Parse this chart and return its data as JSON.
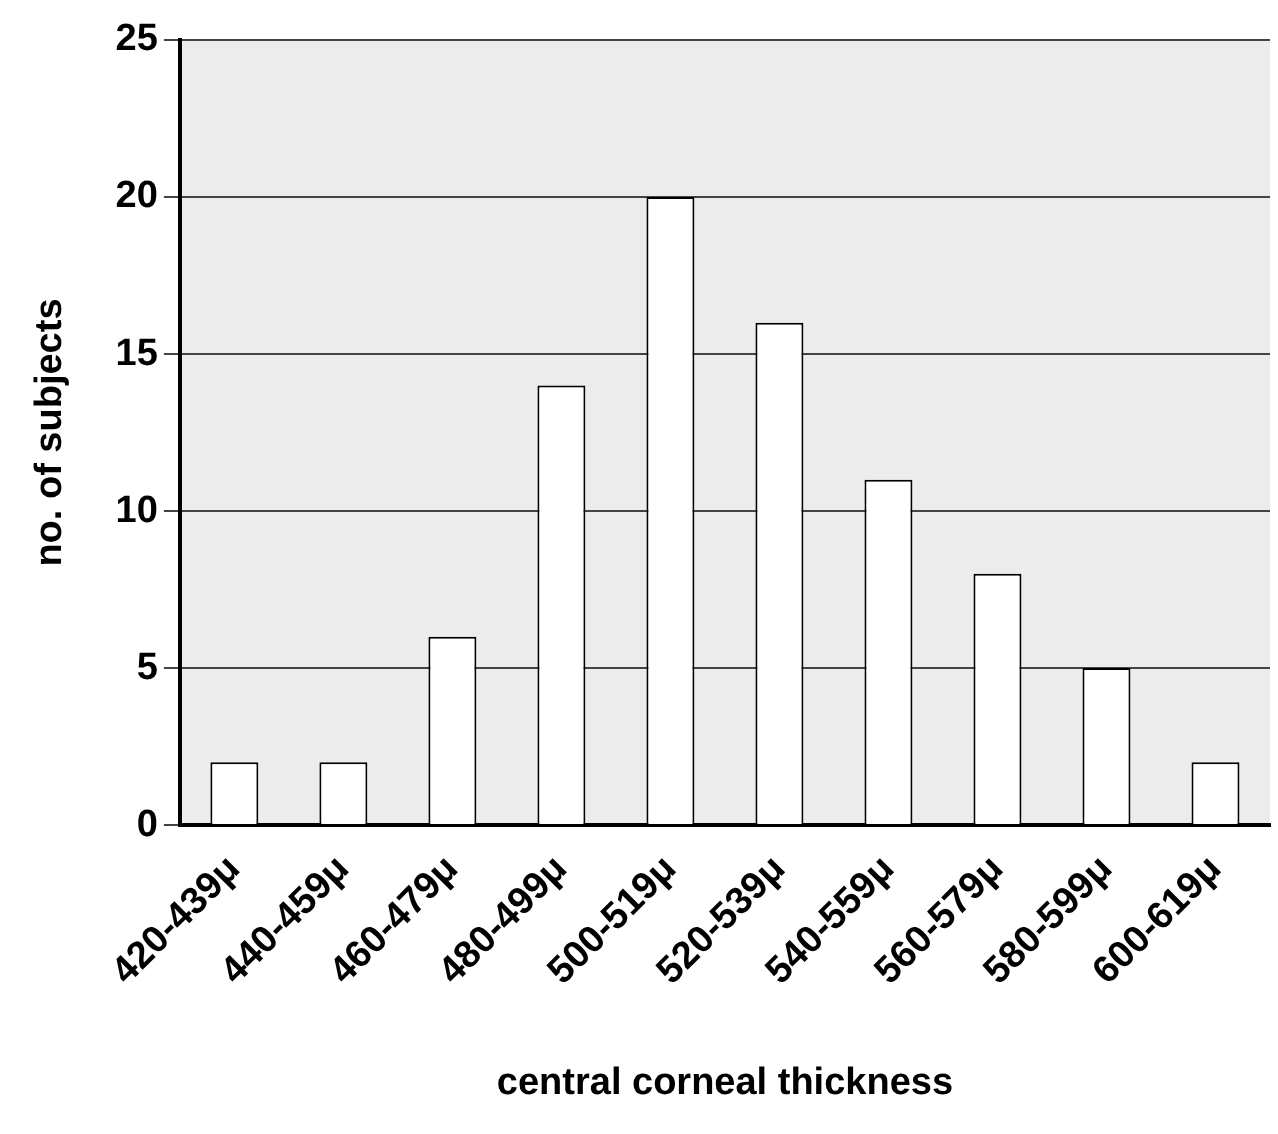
{
  "chart_data": {
    "type": "bar",
    "xlabel": "central corneal thickness",
    "ylabel": "no. of subjects",
    "categories": [
      "420-439μ",
      "440-459μ",
      "460-479μ",
      "480-499μ",
      "500-519μ",
      "520-539μ",
      "540-559μ",
      "560-579μ",
      "580-599μ",
      "600-619μ"
    ],
    "values": [
      2,
      2,
      6,
      14,
      20,
      16,
      11,
      8,
      5,
      2
    ],
    "color": "#ffffff",
    "ylim": [
      0,
      25
    ],
    "yticks": [
      0,
      5,
      10,
      15,
      20,
      25
    ],
    "grid": "y",
    "legend": false
  }
}
